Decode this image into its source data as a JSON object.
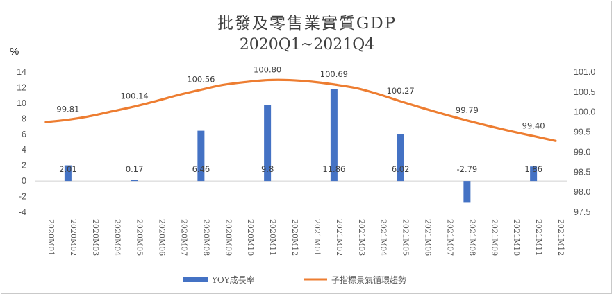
{
  "chart_data": {
    "type": "bar+line",
    "title": "批發及零售業實質GDP",
    "subtitle": "2020Q1~2021Q4",
    "ylabel_left": "%",
    "categories": [
      "2020M01",
      "2020M02",
      "2020M03",
      "2020M04",
      "2020M05",
      "2020M06",
      "2020M07",
      "2020M08",
      "2020M09",
      "2020M10",
      "2020M11",
      "2020M12",
      "2021M01",
      "2021M02",
      "2021M03",
      "2021M04",
      "2021M05",
      "2021M06",
      "2021M07",
      "2021M08",
      "2021M09",
      "2021M10",
      "2021M11",
      "2021M12"
    ],
    "left_axis": {
      "min": -4,
      "max": 14,
      "step": 2,
      "ticks": [
        "14",
        "12",
        "10",
        "8",
        "6",
        "4",
        "2",
        "0",
        "-2",
        "-4"
      ]
    },
    "right_axis": {
      "min": 97.5,
      "max": 101.0,
      "step": 0.5,
      "ticks": [
        "101.0",
        "100.5",
        "100.0",
        "99.5",
        "99.0",
        "98.5",
        "98.0",
        "97.5"
      ]
    },
    "series": [
      {
        "name": "YOY成長率",
        "kind": "bar",
        "axis": "left",
        "color": "#4472c4",
        "points": [
          {
            "category": "2020M02",
            "value": 2.01,
            "label": "2.01"
          },
          {
            "category": "2020M05",
            "value": 0.17,
            "label": "0.17"
          },
          {
            "category": "2020M08",
            "value": 6.46,
            "label": "6.46"
          },
          {
            "category": "2020M11",
            "value": 9.8,
            "label": "9.8"
          },
          {
            "category": "2021M02",
            "value": 11.86,
            "label": "11.86"
          },
          {
            "category": "2021M05",
            "value": 6.02,
            "label": "6.02"
          },
          {
            "category": "2021M08",
            "value": -2.79,
            "label": "-2.79"
          },
          {
            "category": "2021M11",
            "value": 1.86,
            "label": "1.86"
          }
        ]
      },
      {
        "name": "子指標景氣循環趨勢",
        "kind": "line",
        "axis": "right",
        "color": "#ed7d31",
        "values": [
          99.75,
          99.81,
          99.9,
          100.02,
          100.14,
          100.28,
          100.43,
          100.56,
          100.68,
          100.75,
          100.8,
          100.8,
          100.76,
          100.69,
          100.6,
          100.45,
          100.27,
          100.1,
          99.94,
          99.79,
          99.65,
          99.52,
          99.4,
          99.28
        ],
        "labels": [
          {
            "category": "2020M02",
            "label": "99.81"
          },
          {
            "category": "2020M05",
            "label": "100.14"
          },
          {
            "category": "2020M08",
            "label": "100.56"
          },
          {
            "category": "2020M11",
            "label": "100.80"
          },
          {
            "category": "2021M02",
            "label": "100.69"
          },
          {
            "category": "2021M05",
            "label": "100.27"
          },
          {
            "category": "2021M08",
            "label": "99.79"
          },
          {
            "category": "2021M11",
            "label": "99.40"
          }
        ]
      }
    ],
    "grid": false,
    "legend_position": "bottom"
  }
}
